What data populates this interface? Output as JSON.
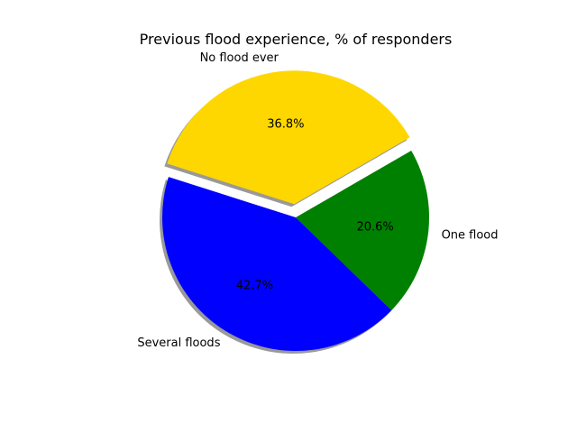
{
  "chart_data": {
    "type": "pie",
    "title": "Previous flood experience, % of responders",
    "slices": [
      {
        "label": "No flood ever",
        "value": 36.8,
        "pct_label": "36.8%",
        "color": "#ffd700",
        "exploded": true
      },
      {
        "label": "Several floods",
        "value": 42.7,
        "pct_label": "42.7%",
        "color": "#0000ff",
        "exploded": false
      },
      {
        "label": "One flood",
        "value": 20.6,
        "pct_label": "20.6%",
        "color": "#008000",
        "exploded": false
      }
    ],
    "start_angle_deg": 30,
    "direction": "counterclockwise",
    "shadow": true
  }
}
